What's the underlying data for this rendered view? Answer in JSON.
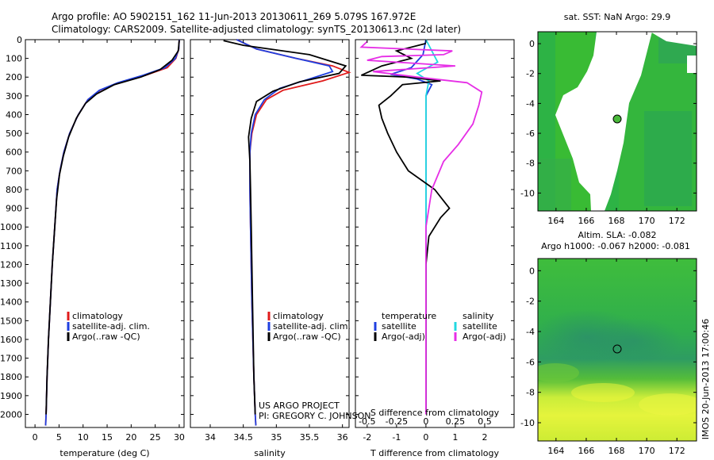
{
  "header": {
    "line1": "Argo profile: AO 5902151_162 11-Jun-2013 20130611_269 5.079S 167.972E",
    "line2": "Climatology: CARS2009. Satellite-adjusted climatology: synTS_20130613.nc (2d later)"
  },
  "colors": {
    "clim": "#e01b1b",
    "sat": "#1f3fe0",
    "argo": "#000000",
    "sat_s": "#22d8e0",
    "argo_s": "#e62ee6"
  },
  "depth_axis": {
    "ylim": [
      0,
      2070
    ],
    "ticks": [
      0,
      100,
      200,
      300,
      400,
      500,
      600,
      700,
      800,
      900,
      1000,
      1100,
      1200,
      1300,
      1400,
      1500,
      1600,
      1700,
      1800,
      1900,
      2000
    ]
  },
  "chart_data": [
    {
      "type": "line",
      "name": "temperature",
      "xlabel": "temperature (deg C)",
      "xlim": [
        -2,
        31
      ],
      "xticks": [
        0,
        5,
        10,
        15,
        20,
        25,
        30
      ],
      "legend": {
        "placement": "bottom-center",
        "items": [
          "climatology",
          "satellite-adj. clim.",
          "Argo(..raw -QC)"
        ]
      },
      "series": [
        {
          "name": "climatology",
          "color_key": "clim",
          "points": [
            [
              30,
              0
            ],
            [
              29.9,
              50
            ],
            [
              29.3,
              100
            ],
            [
              27.5,
              150
            ],
            [
              23,
              190
            ],
            [
              17.5,
              230
            ],
            [
              13.5,
              270
            ],
            [
              11,
              320
            ],
            [
              9,
              400
            ],
            [
              7.2,
              500
            ],
            [
              6,
              600
            ],
            [
              5.2,
              700
            ],
            [
              4.6,
              800
            ],
            [
              4.1,
              1000
            ],
            [
              3.6,
              1200
            ],
            [
              3.2,
              1400
            ],
            [
              2.8,
              1600
            ],
            [
              2.5,
              1800
            ],
            [
              2.3,
              2000
            ],
            [
              2.2,
              2060
            ]
          ]
        },
        {
          "name": "satellite-adj. clim.",
          "color_key": "sat",
          "points": [
            [
              30,
              0
            ],
            [
              29.9,
              50
            ],
            [
              29.2,
              100
            ],
            [
              27,
              150
            ],
            [
              22.5,
              190
            ],
            [
              17.2,
              230
            ],
            [
              13.4,
              270
            ],
            [
              11,
              320
            ],
            [
              9,
              400
            ],
            [
              7.2,
              500
            ],
            [
              6,
              600
            ],
            [
              5.2,
              700
            ],
            [
              4.6,
              800
            ],
            [
              4.1,
              1000
            ],
            [
              3.6,
              1200
            ],
            [
              3.2,
              1400
            ],
            [
              2.8,
              1600
            ],
            [
              2.5,
              1800
            ],
            [
              2.3,
              2000
            ],
            [
              2.2,
              2060
            ]
          ]
        },
        {
          "name": "Argo(..raw -QC)",
          "color_key": "argo",
          "points": [
            [
              30,
              5
            ],
            [
              29.8,
              60
            ],
            [
              28.5,
              110
            ],
            [
              26,
              160
            ],
            [
              22,
              200
            ],
            [
              16.5,
              240
            ],
            [
              12.8,
              290
            ],
            [
              10.5,
              340
            ],
            [
              8.6,
              420
            ],
            [
              7,
              520
            ],
            [
              5.9,
              620
            ],
            [
              5.1,
              720
            ],
            [
              4.5,
              850
            ],
            [
              4.1,
              1000
            ],
            [
              3.6,
              1200
            ],
            [
              3.2,
              1400
            ],
            [
              2.8,
              1600
            ],
            [
              2.5,
              1800
            ],
            [
              2.3,
              2000
            ]
          ]
        }
      ]
    },
    {
      "type": "line",
      "name": "salinity",
      "xlabel": "salinity",
      "xlim": [
        33.7,
        36.1
      ],
      "xticks": [
        34,
        34.5,
        35,
        35.5,
        36
      ],
      "legend": {
        "placement": "bottom-right",
        "items": [
          "climatology",
          "satellite-adj. clim.",
          "Argo(..raw -QC)"
        ]
      },
      "annotation": [
        "US ARGO PROJECT",
        "PI: GREGORY C. JOHNSON"
      ],
      "series": [
        {
          "name": "climatology",
          "color_key": "clim",
          "points": [
            [
              34.4,
              0
            ],
            [
              34.7,
              50
            ],
            [
              35.3,
              100
            ],
            [
              35.85,
              140
            ],
            [
              36.1,
              175
            ],
            [
              35.7,
              220
            ],
            [
              35.1,
              270
            ],
            [
              34.85,
              320
            ],
            [
              34.7,
              400
            ],
            [
              34.63,
              500
            ],
            [
              34.6,
              600
            ],
            [
              34.6,
              800
            ],
            [
              34.61,
              1000
            ],
            [
              34.63,
              1400
            ],
            [
              34.66,
              1800
            ],
            [
              34.68,
              2000
            ],
            [
              34.69,
              2060
            ]
          ]
        },
        {
          "name": "satellite-adj. clim.",
          "color_key": "sat",
          "points": [
            [
              34.4,
              0
            ],
            [
              34.7,
              50
            ],
            [
              35.3,
              100
            ],
            [
              35.8,
              140
            ],
            [
              35.85,
              170
            ],
            [
              35.5,
              210
            ],
            [
              35.05,
              260
            ],
            [
              34.82,
              320
            ],
            [
              34.68,
              400
            ],
            [
              34.62,
              500
            ],
            [
              34.6,
              600
            ],
            [
              34.6,
              800
            ],
            [
              34.61,
              1000
            ],
            [
              34.63,
              1400
            ],
            [
              34.66,
              1800
            ],
            [
              34.68,
              2000
            ],
            [
              34.69,
              2060
            ]
          ]
        },
        {
          "name": "Argo(..raw -QC)",
          "color_key": "argo",
          "points": [
            [
              34.2,
              5
            ],
            [
              34.5,
              30
            ],
            [
              35.5,
              80
            ],
            [
              36.05,
              140
            ],
            [
              35.95,
              180
            ],
            [
              35.35,
              225
            ],
            [
              34.95,
              275
            ],
            [
              34.7,
              330
            ],
            [
              34.62,
              420
            ],
            [
              34.58,
              520
            ],
            [
              34.6,
              650
            ],
            [
              34.61,
              800
            ],
            [
              34.62,
              1000
            ],
            [
              34.64,
              1400
            ],
            [
              34.66,
              1800
            ],
            [
              34.68,
              2000
            ]
          ]
        }
      ]
    },
    {
      "type": "line",
      "name": "difference from climatology",
      "xlabel": "T difference from climatology",
      "xlabel_top": "S difference from climatology",
      "xlim": [
        -2.4,
        3.0
      ],
      "xticks": [
        -2,
        -1,
        0,
        1,
        2
      ],
      "xticks_s": [
        "-0.5",
        "-0.25",
        "0",
        "0.25",
        "0.5"
      ],
      "legend": {
        "placement": "bottom",
        "temperature_title": "temperature",
        "salinity_title": "salinity",
        "items_t": [
          "satellite",
          "Argo(-adj)"
        ],
        "items_s": [
          "satellite",
          "Argo(-adj)"
        ]
      },
      "series": [
        {
          "name": "T satellite",
          "color_key": "sat",
          "points": [
            [
              0,
              0
            ],
            [
              -0.1,
              80
            ],
            [
              -0.5,
              150
            ],
            [
              -1.2,
              185
            ],
            [
              -0.3,
              210
            ],
            [
              0.2,
              240
            ],
            [
              0,
              300
            ],
            [
              0,
              500
            ],
            [
              0,
              1000
            ],
            [
              0,
              2000
            ]
          ]
        },
        {
          "name": "S satellite",
          "color_key": "sat_s",
          "points": [
            [
              0,
              0
            ],
            [
              0.2,
              60
            ],
            [
              0.4,
              120
            ],
            [
              -0.3,
              180
            ],
            [
              0.1,
              220
            ],
            [
              0,
              300
            ],
            [
              0,
              600
            ],
            [
              0,
              2000
            ]
          ]
        },
        {
          "name": "T Argo(-adj)",
          "color_key": "argo",
          "points": [
            [
              0,
              20
            ],
            [
              -1,
              60
            ],
            [
              -0.5,
              100
            ],
            [
              -1.5,
              140
            ],
            [
              -2.2,
              190
            ],
            [
              -0.6,
              200
            ],
            [
              0.5,
              220
            ],
            [
              -0.8,
              240
            ],
            [
              -1.2,
              300
            ],
            [
              -1.6,
              350
            ],
            [
              -1.5,
              420
            ],
            [
              -1.3,
              500
            ],
            [
              -1,
              600
            ],
            [
              -0.6,
              700
            ],
            [
              0.3,
              800
            ],
            [
              0.8,
              900
            ],
            [
              0.5,
              950
            ],
            [
              0.1,
              1050
            ],
            [
              0,
              1200
            ],
            [
              0,
              2000
            ]
          ]
        },
        {
          "name": "S Argo(-adj)",
          "color_key": "argo_s",
          "points": [
            [
              -2,
              10
            ],
            [
              -2.2,
              40
            ],
            [
              0.9,
              60
            ],
            [
              0.6,
              80
            ],
            [
              -1.5,
              90
            ],
            [
              -2,
              110
            ],
            [
              1.0,
              140
            ],
            [
              -1.8,
              170
            ],
            [
              -0.3,
              200
            ],
            [
              1.4,
              230
            ],
            [
              1.9,
              280
            ],
            [
              1.8,
              350
            ],
            [
              1.6,
              450
            ],
            [
              1.1,
              560
            ],
            [
              0.6,
              650
            ],
            [
              0.2,
              800
            ],
            [
              0,
              1000
            ],
            [
              0,
              2000
            ]
          ]
        }
      ]
    },
    {
      "type": "heatmap",
      "name": "sat SST map",
      "title": "sat. SST: NaN Argo: 29.9",
      "xlim": [
        162.8,
        173.3
      ],
      "ylim": [
        -11.2,
        0.8
      ],
      "xticks": [
        164,
        166,
        168,
        170,
        172
      ],
      "yticks": [
        0,
        -2,
        -4,
        -6,
        -8,
        -10
      ],
      "marker": {
        "lon": 167.972,
        "lat": -5.079
      }
    },
    {
      "type": "heatmap",
      "name": "SLA map",
      "title": "Altim. SLA: -0.082",
      "subtitle": "Argo h1000: -0.067 h2000: -0.081",
      "xlim": [
        162.8,
        173.3
      ],
      "ylim": [
        -11.2,
        0.8
      ],
      "xticks": [
        164,
        166,
        168,
        170,
        172
      ],
      "yticks": [
        0,
        -2,
        -4,
        -6,
        -8,
        -10
      ],
      "marker": {
        "lon": 167.972,
        "lat": -5.079
      }
    }
  ],
  "stamp": "IMOS 20-Jun-2013 17:00:46"
}
